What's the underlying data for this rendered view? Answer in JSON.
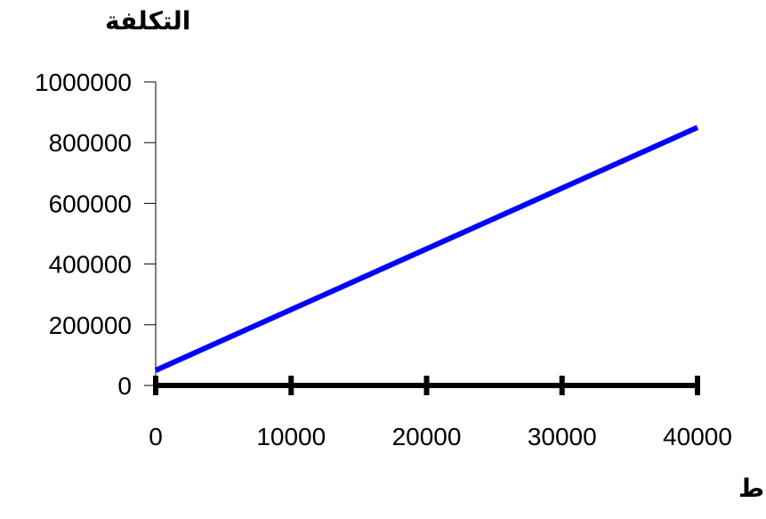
{
  "chart_data": {
    "type": "line",
    "ylabel": "التكلفة",
    "xlabel": "مستوى النشاط",
    "xlim": [
      0,
      40000
    ],
    "ylim": [
      0,
      1000000
    ],
    "x_ticks": [
      "0",
      "10000",
      "20000",
      "30000",
      "40000"
    ],
    "y_ticks": [
      "0",
      "200000",
      "400000",
      "600000",
      "800000",
      "1000000"
    ],
    "grid": false,
    "series": [
      {
        "x": [
          0,
          40000
        ],
        "values": [
          50000,
          850000
        ],
        "color": "#0000ff"
      }
    ],
    "axis_color": "#000000"
  }
}
